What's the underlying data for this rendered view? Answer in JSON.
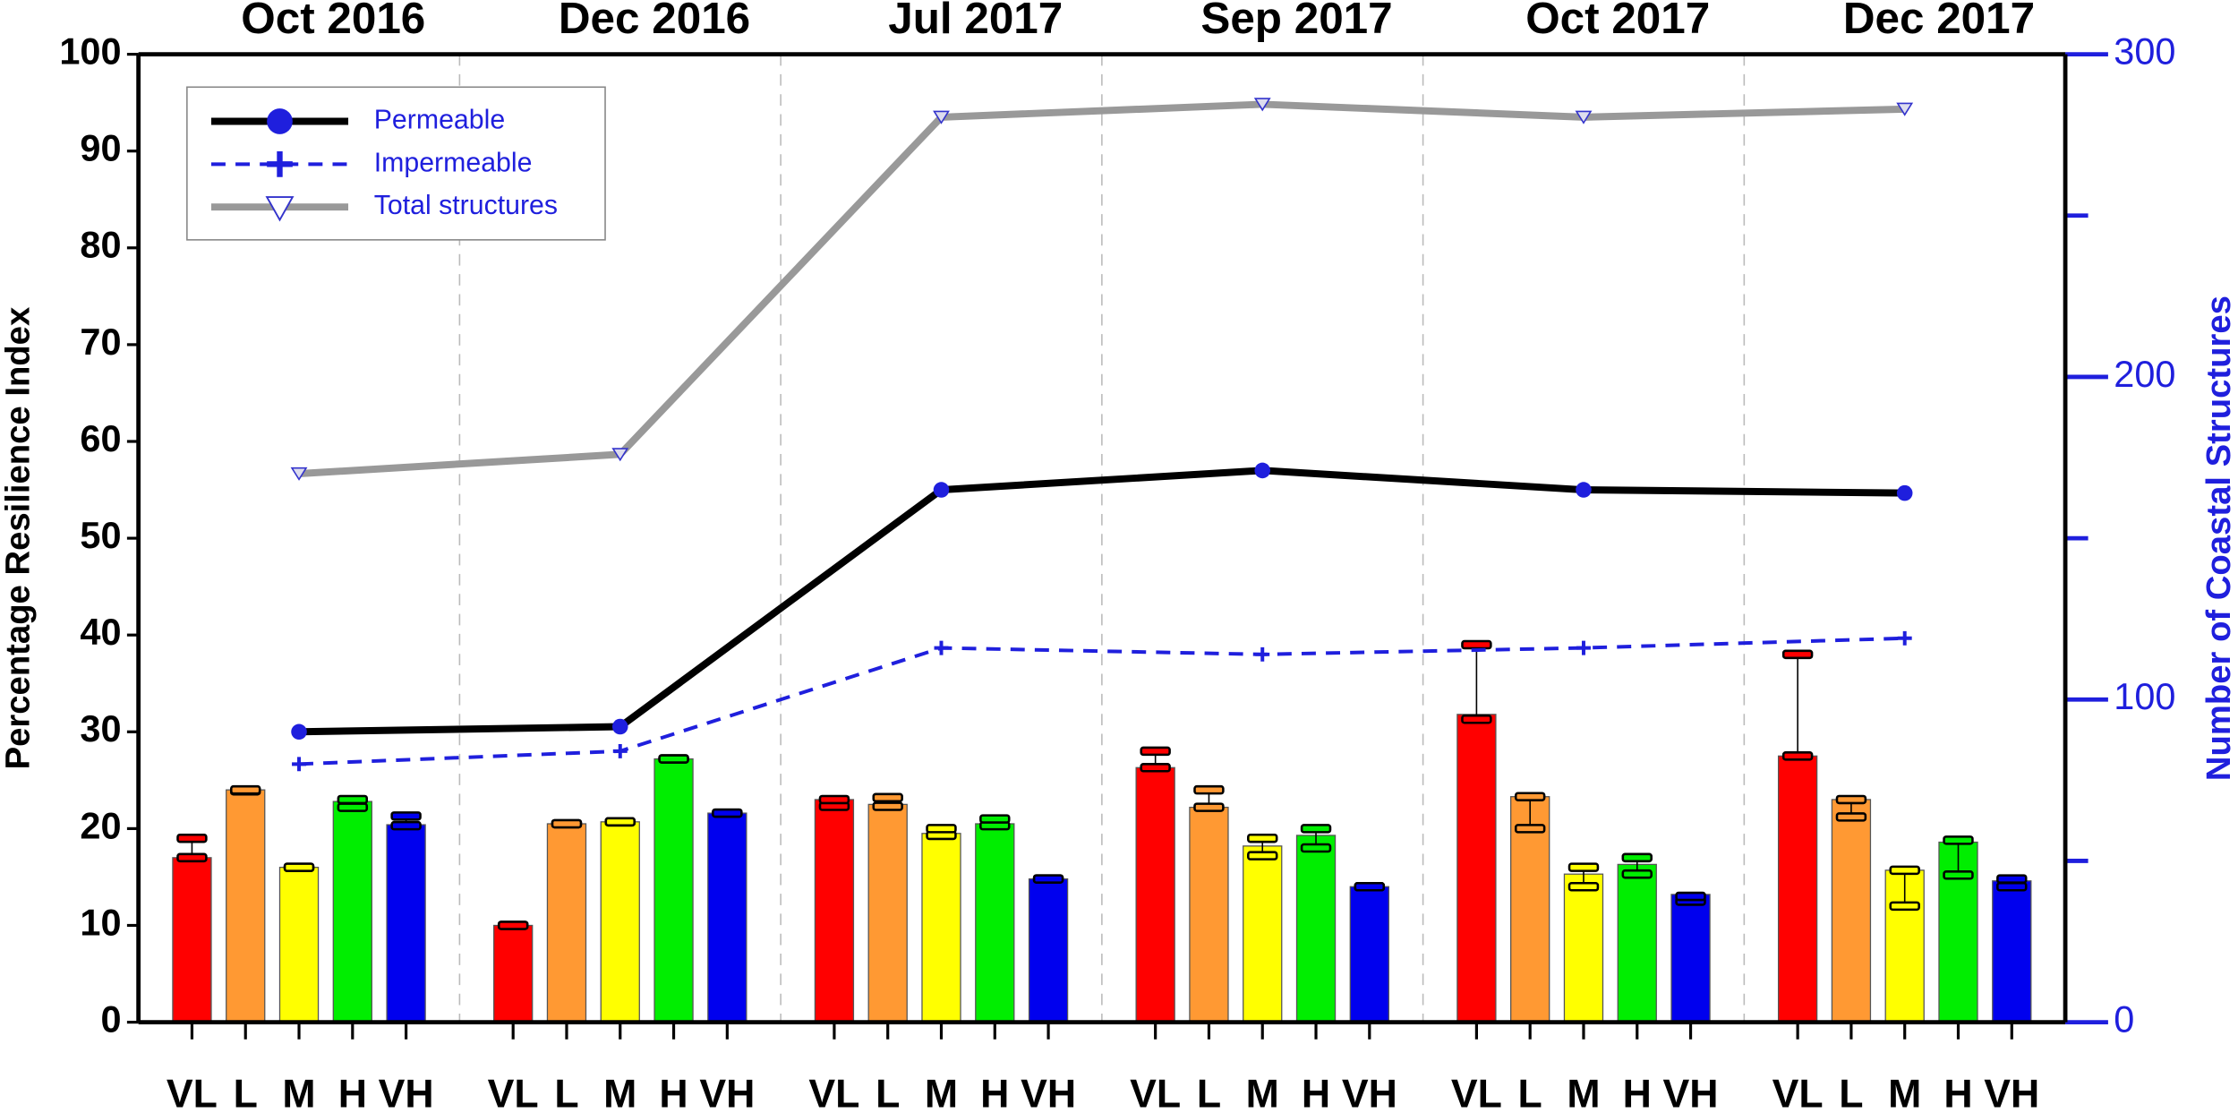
{
  "chart_data": {
    "type": "bar",
    "groups": [
      "Oct 2016",
      "Dec 2016",
      "Jul 2017",
      "Sep 2017",
      "Oct 2017",
      "Dec 2017"
    ],
    "bar_series": [
      {
        "name": "VL",
        "color": "#ff0000",
        "values": [
          17,
          10,
          23,
          26.3,
          31.8,
          27.5
        ],
        "low": [
          17,
          10,
          22.3,
          26.3,
          31.3,
          27.5
        ],
        "high": [
          19,
          10,
          23,
          28,
          39,
          38
        ]
      },
      {
        "name": "L",
        "color": "#ff9933",
        "values": [
          24,
          20.5,
          22.5,
          22.2,
          23.3,
          23
        ],
        "low": [
          23.9,
          20.5,
          22.3,
          22.2,
          20,
          21.2
        ],
        "high": [
          24,
          20.5,
          23.2,
          24,
          23.3,
          23
        ]
      },
      {
        "name": "M",
        "color": "#ffff00",
        "values": [
          16,
          20.7,
          19.5,
          18.2,
          15.3,
          15.7
        ],
        "low": [
          16,
          20.7,
          19.3,
          17.2,
          14,
          12
        ],
        "high": [
          16,
          20.7,
          20,
          19,
          16,
          15.7
        ]
      },
      {
        "name": "H",
        "color": "#00ee00",
        "values": [
          22.8,
          27.2,
          20.5,
          19.3,
          16.3,
          18.6
        ],
        "low": [
          22.2,
          27.2,
          20.3,
          18,
          15.3,
          15.2
        ],
        "high": [
          23,
          27.2,
          21,
          20,
          17,
          18.8
        ]
      },
      {
        "name": "VH",
        "color": "#0000ee",
        "values": [
          20.4,
          21.6,
          14.8,
          14,
          13.2,
          14.6
        ],
        "low": [
          20.3,
          21.6,
          14.8,
          14,
          12.5,
          14
        ],
        "high": [
          21.3,
          21.6,
          14.8,
          14,
          13,
          14.8
        ]
      }
    ],
    "series": [
      {
        "name": "Permeable",
        "color": "#000000",
        "marker": "circle",
        "line": "solid",
        "axis": "y2",
        "values": [
          90,
          91.6,
          165,
          171,
          165,
          164
        ]
      },
      {
        "name": "Impermeable",
        "color": "#1f1fdd",
        "marker": "plus",
        "line": "dashed",
        "axis": "y2",
        "values": [
          80,
          84,
          116,
          114,
          116,
          119
        ]
      },
      {
        "name": "Total structures",
        "color": "#999999",
        "marker": "triangle-down",
        "line": "solid",
        "axis": "y2",
        "values": [
          170,
          176,
          280.5,
          284.5,
          280.5,
          283
        ]
      }
    ],
    "ylabel": "Percentage Resilience Index",
    "y2label": "Number of Coastal Structures",
    "ylim": [
      0,
      100
    ],
    "yticks": [
      0,
      10,
      20,
      30,
      40,
      50,
      60,
      70,
      80,
      90,
      100
    ],
    "y2lim": [
      0,
      300
    ],
    "y2ticks": [
      0,
      100,
      200,
      300
    ],
    "y2minor_ticks": [
      50,
      150,
      250
    ],
    "legend": "upper left"
  }
}
